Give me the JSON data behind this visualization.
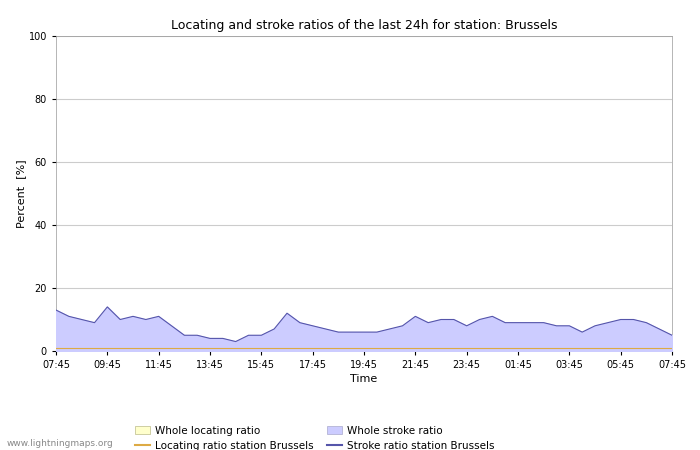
{
  "title": "Locating and stroke ratios of the last 24h for station: Brussels",
  "xlabel": "Time",
  "ylabel": "Percent  [%]",
  "watermark": "www.lightningmaps.org",
  "ylim": [
    0,
    100
  ],
  "yticks": [
    0,
    20,
    40,
    60,
    80,
    100
  ],
  "xtick_labels": [
    "07:45",
    "09:45",
    "11:45",
    "13:45",
    "15:45",
    "17:45",
    "19:45",
    "21:45",
    "23:45",
    "01:45",
    "03:45",
    "05:45",
    "07:45"
  ],
  "bg_color": "#ffffff",
  "plot_bg_color": "#ffffff",
  "grid_color": "#cccccc",
  "stroke_fill_color": "#ccccff",
  "stroke_line_color": "#5555aa",
  "locating_fill_color": "#ffffcc",
  "locating_line_color": "#ddaa44",
  "stroke_values": [
    13,
    11,
    10,
    9,
    14,
    10,
    11,
    10,
    11,
    8,
    5,
    5,
    4,
    4,
    3,
    5,
    5,
    7,
    12,
    9,
    8,
    7,
    6,
    6,
    6,
    6,
    7,
    8,
    11,
    9,
    10,
    10,
    8,
    10,
    11,
    9,
    9,
    9,
    9,
    8,
    8,
    6,
    8,
    9,
    10,
    10,
    9,
    7,
    5
  ],
  "locating_values": [
    1,
    1,
    1,
    1,
    1,
    1,
    1,
    1,
    1,
    1,
    1,
    1,
    1,
    1,
    1,
    1,
    1,
    1,
    1,
    1,
    1,
    1,
    1,
    1,
    1,
    1,
    1,
    1,
    1,
    1,
    1,
    1,
    1,
    1,
    1,
    1,
    1,
    1,
    1,
    1,
    1,
    1,
    1,
    1,
    1,
    1,
    1,
    1,
    1
  ],
  "n_points": 49,
  "legend": {
    "whole_locating_label": "Whole locating ratio",
    "whole_stroke_label": "Whole stroke ratio",
    "locating_station_label": "Locating ratio station Brussels",
    "stroke_station_label": "Stroke ratio station Brussels"
  }
}
